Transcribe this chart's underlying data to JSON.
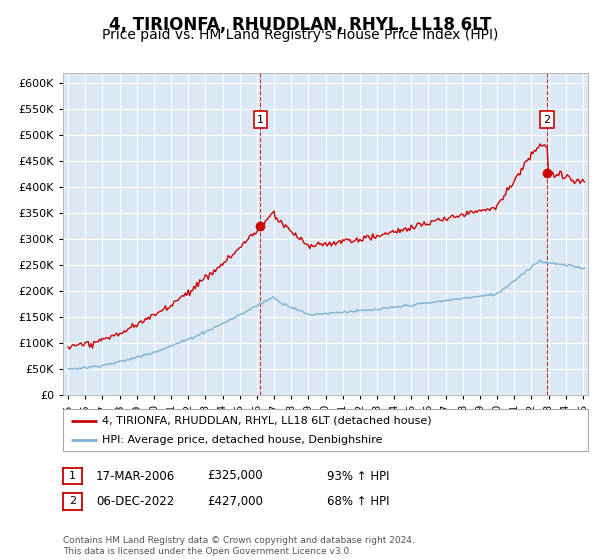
{
  "title": "4, TIRIONFA, RHUDDLAN, RHYL, LL18 6LT",
  "subtitle": "Price paid vs. HM Land Registry's House Price Index (HPI)",
  "title_fontsize": 12,
  "subtitle_fontsize": 10,
  "background_color": "#dce9f5",
  "fig_background": "#ffffff",
  "grid_color": "#ffffff",
  "sale1_date": 2006.21,
  "sale1_price": 325000,
  "sale2_date": 2022.92,
  "sale2_price": 427000,
  "red_line_color": "#cc0000",
  "blue_line_color": "#7fb3d3",
  "dashed_line_color": "#cc0000",
  "sale_dot_color": "#cc0000",
  "legend_label_red": "4, TIRIONFA, RHUDDLAN, RHYL, LL18 6LT (detached house)",
  "legend_label_blue": "HPI: Average price, detached house, Denbighshire",
  "table_row1": [
    "1",
    "17-MAR-2006",
    "£325,000",
    "93% ↑ HPI"
  ],
  "table_row2": [
    "2",
    "06-DEC-2022",
    "£427,000",
    "68% ↑ HPI"
  ],
  "footer_text": "Contains HM Land Registry data © Crown copyright and database right 2024.\nThis data is licensed under the Open Government Licence v3.0.",
  "ylim": [
    0,
    620000
  ],
  "yticks": [
    0,
    50000,
    100000,
    150000,
    200000,
    250000,
    300000,
    350000,
    400000,
    450000,
    500000,
    550000,
    600000
  ],
  "xlim_start": 1994.7,
  "xlim_end": 2025.3
}
